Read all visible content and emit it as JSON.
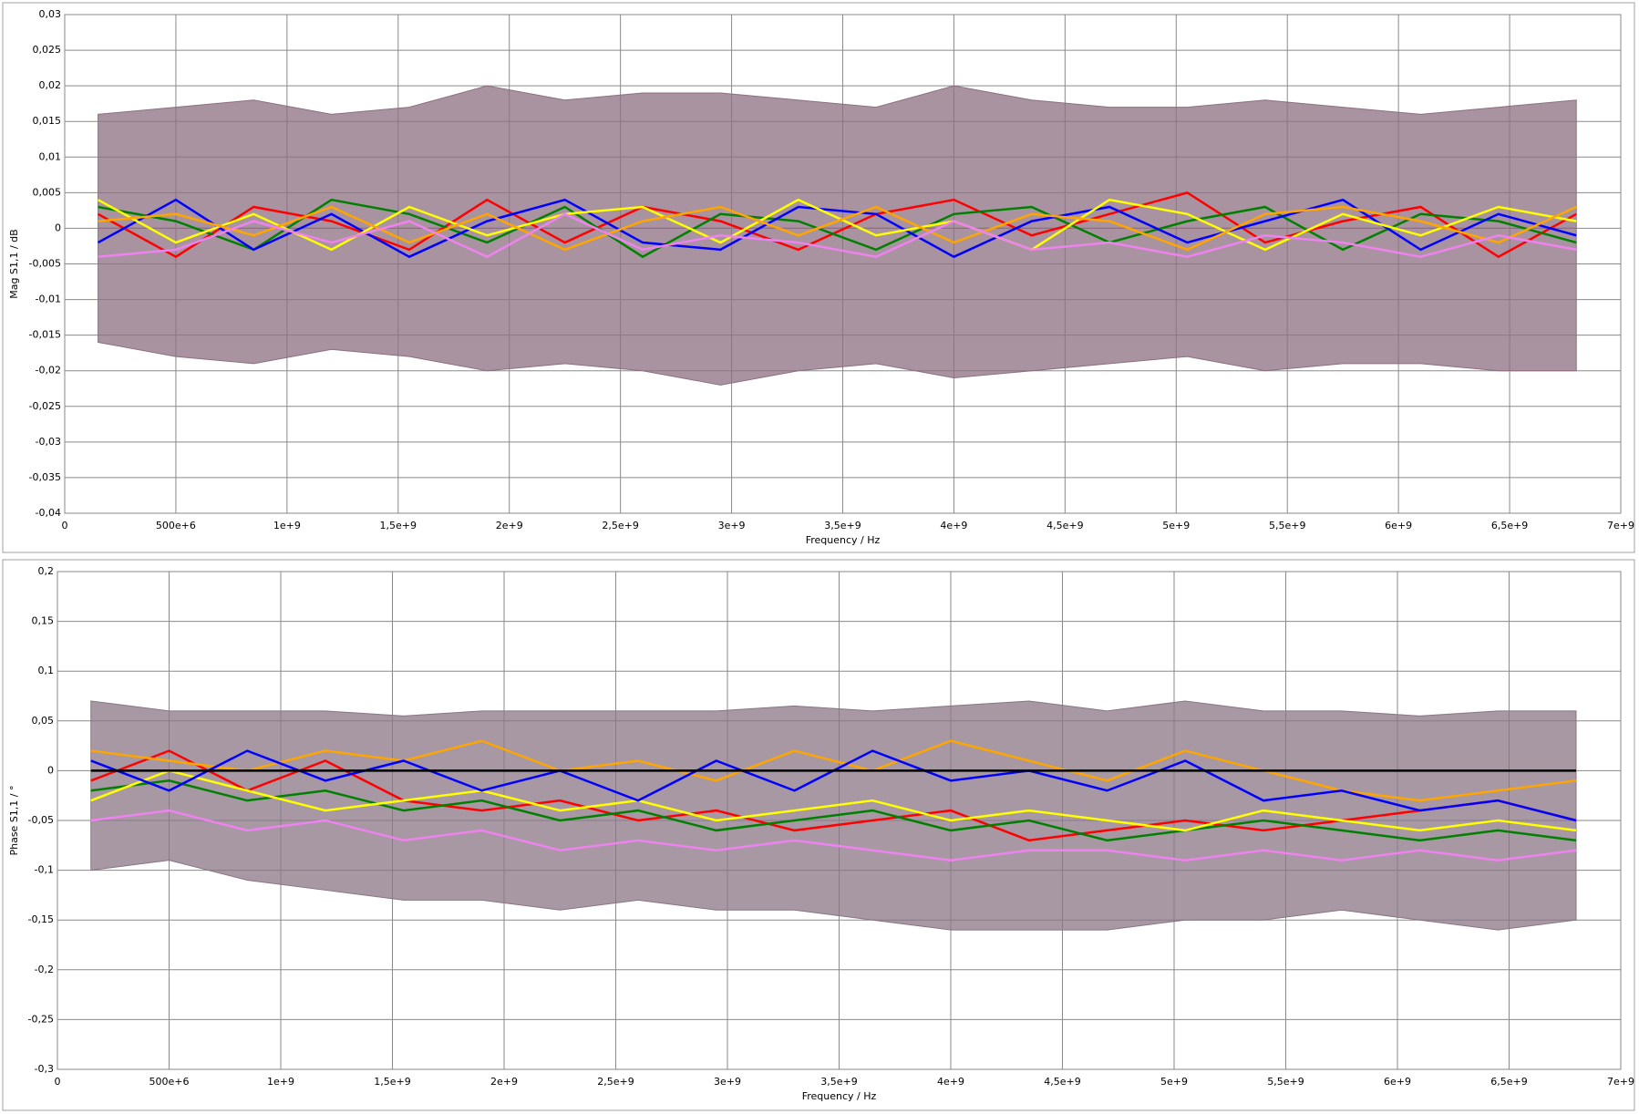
{
  "chart_data": [
    {
      "type": "line",
      "xlabel": "Frequency / Hz",
      "ylabel": "Mag S1,1 / dB",
      "grid": true,
      "xlim": [
        0,
        7000000000
      ],
      "ylim": [
        -0.04,
        0.03
      ],
      "xticks": [
        0,
        {
          "value": 500000000,
          "label": "500e+6"
        },
        {
          "value": 1000000000,
          "label": "1e+9"
        },
        {
          "value": 1500000000,
          "label": "1,5e+9"
        },
        {
          "value": 2000000000,
          "label": "2e+9"
        },
        {
          "value": 2500000000,
          "label": "2,5e+9"
        },
        {
          "value": 3000000000,
          "label": "3e+9"
        },
        {
          "value": 3500000000,
          "label": "3,5e+9"
        },
        {
          "value": 4000000000,
          "label": "4e+9"
        },
        {
          "value": 4500000000,
          "label": "4,5e+9"
        },
        {
          "value": 5000000000,
          "label": "5e+9"
        },
        {
          "value": 5500000000,
          "label": "5,5e+9"
        },
        {
          "value": 6000000000,
          "label": "6e+9"
        },
        {
          "value": 6500000000,
          "label": "6,5e+9"
        },
        {
          "value": 7000000000,
          "label": "7e+9"
        }
      ],
      "yticks": [
        {
          "value": -0.04,
          "label": "-0,04"
        },
        {
          "value": -0.035,
          "label": "-0,035"
        },
        {
          "value": -0.03,
          "label": "-0,03"
        },
        {
          "value": -0.025,
          "label": "-0,025"
        },
        {
          "value": -0.02,
          "label": "-0,02"
        },
        {
          "value": -0.015,
          "label": "-0,015"
        },
        {
          "value": -0.01,
          "label": "-0,01"
        },
        {
          "value": -0.005,
          "label": "-0,005"
        },
        0,
        {
          "value": 0.005,
          "label": "0,005"
        },
        {
          "value": 0.01,
          "label": "0,01"
        },
        {
          "value": 0.015,
          "label": "0,015"
        },
        {
          "value": 0.02,
          "label": "0,02"
        },
        {
          "value": 0.025,
          "label": "0,025"
        },
        {
          "value": 0.03,
          "label": "0,03"
        }
      ],
      "x": [
        150000000,
        500000000,
        850000000,
        1200000000,
        1550000000,
        1900000000,
        2250000000,
        2600000000,
        2950000000,
        3300000000,
        3650000000,
        4000000000,
        4350000000,
        4700000000,
        5050000000,
        5400000000,
        5750000000,
        6100000000,
        6450000000,
        6800000000
      ],
      "band": {
        "color": "#8c6f80",
        "upper": [
          0.016,
          0.017,
          0.018,
          0.016,
          0.017,
          0.02,
          0.018,
          0.019,
          0.019,
          0.018,
          0.017,
          0.02,
          0.018,
          0.017,
          0.017,
          0.018,
          0.017,
          0.016,
          0.017,
          0.018
        ],
        "lower": [
          -0.016,
          -0.018,
          -0.019,
          -0.017,
          -0.018,
          -0.02,
          -0.019,
          -0.02,
          -0.022,
          -0.02,
          -0.019,
          -0.021,
          -0.02,
          -0.019,
          -0.018,
          -0.02,
          -0.019,
          -0.019,
          -0.02,
          -0.02
        ]
      },
      "series": [
        {
          "color": "#ff0000",
          "values": [
            0.002,
            -0.004,
            0.003,
            0.001,
            -0.003,
            0.004,
            -0.002,
            0.003,
            0.001,
            -0.003,
            0.002,
            0.004,
            -0.001,
            0.002,
            0.005,
            -0.002,
            0.001,
            0.003,
            -0.004,
            0.002
          ]
        },
        {
          "color": "#008000",
          "values": [
            0.003,
            0.001,
            -0.003,
            0.004,
            0.002,
            -0.002,
            0.003,
            -0.004,
            0.002,
            0.001,
            -0.003,
            0.002,
            0.003,
            -0.002,
            0.001,
            0.003,
            -0.003,
            0.002,
            0.001,
            -0.002
          ]
        },
        {
          "color": "#0000ff",
          "values": [
            -0.002,
            0.004,
            -0.003,
            0.002,
            -0.004,
            0.001,
            0.004,
            -0.002,
            -0.003,
            0.003,
            0.002,
            -0.004,
            0.001,
            0.003,
            -0.002,
            0.001,
            0.004,
            -0.003,
            0.002,
            -0.001
          ]
        },
        {
          "color": "#ffff00",
          "values": [
            0.004,
            -0.002,
            0.002,
            -0.003,
            0.003,
            -0.001,
            0.002,
            0.003,
            -0.002,
            0.004,
            -0.001,
            0.001,
            -0.003,
            0.004,
            0.002,
            -0.003,
            0.002,
            -0.001,
            0.003,
            0.001
          ]
        },
        {
          "color": "#ffa500",
          "values": [
            0.001,
            0.002,
            -0.001,
            0.003,
            -0.002,
            0.002,
            -0.003,
            0.001,
            0.003,
            -0.001,
            0.003,
            -0.002,
            0.002,
            0.001,
            -0.003,
            0.002,
            0.003,
            0.001,
            -0.002,
            0.003
          ]
        },
        {
          "color": "#ee82ee",
          "values": [
            -0.004,
            -0.003,
            0.001,
            -0.002,
            0.001,
            -0.004,
            0.002,
            -0.003,
            -0.001,
            -0.002,
            -0.004,
            0.001,
            -0.003,
            -0.002,
            -0.004,
            -0.001,
            -0.002,
            -0.004,
            -0.001,
            -0.003
          ]
        }
      ]
    },
    {
      "type": "line",
      "xlabel": "Frequency / Hz",
      "ylabel": "Phase S1,1 / °",
      "grid": true,
      "xlim": [
        0,
        7000000000
      ],
      "ylim": [
        -0.3,
        0.2
      ],
      "xticks": [
        0,
        {
          "value": 500000000,
          "label": "500e+6"
        },
        {
          "value": 1000000000,
          "label": "1e+9"
        },
        {
          "value": 1500000000,
          "label": "1,5e+9"
        },
        {
          "value": 2000000000,
          "label": "2e+9"
        },
        {
          "value": 2500000000,
          "label": "2,5e+9"
        },
        {
          "value": 3000000000,
          "label": "3e+9"
        },
        {
          "value": 3500000000,
          "label": "3,5e+9"
        },
        {
          "value": 4000000000,
          "label": "4e+9"
        },
        {
          "value": 4500000000,
          "label": "4,5e+9"
        },
        {
          "value": 5000000000,
          "label": "5e+9"
        },
        {
          "value": 5500000000,
          "label": "5,5e+9"
        },
        {
          "value": 6000000000,
          "label": "6e+9"
        },
        {
          "value": 6500000000,
          "label": "6,5e+9"
        },
        {
          "value": 7000000000,
          "label": "7e+9"
        }
      ],
      "yticks": [
        {
          "value": -0.3,
          "label": "-0,3"
        },
        {
          "value": -0.25,
          "label": "-0,25"
        },
        {
          "value": -0.2,
          "label": "-0,2"
        },
        {
          "value": -0.15,
          "label": "-0,15"
        },
        {
          "value": -0.1,
          "label": "-0,1"
        },
        {
          "value": -0.05,
          "label": "-0,05"
        },
        0,
        {
          "value": 0.05,
          "label": "0,05"
        },
        {
          "value": 0.1,
          "label": "0,1"
        },
        {
          "value": 0.15,
          "label": "0,15"
        },
        {
          "value": 0.2,
          "label": "0,2"
        }
      ],
      "x": [
        150000000,
        500000000,
        850000000,
        1200000000,
        1550000000,
        1900000000,
        2250000000,
        2600000000,
        2950000000,
        3300000000,
        3650000000,
        4000000000,
        4350000000,
        4700000000,
        5050000000,
        5400000000,
        5750000000,
        6100000000,
        6450000000,
        6800000000
      ],
      "band": {
        "color": "#8a7585",
        "upper": [
          0.07,
          0.06,
          0.06,
          0.06,
          0.055,
          0.06,
          0.06,
          0.06,
          0.06,
          0.065,
          0.06,
          0.065,
          0.07,
          0.06,
          0.07,
          0.06,
          0.06,
          0.055,
          0.06,
          0.06
        ],
        "lower": [
          -0.1,
          -0.09,
          -0.11,
          -0.12,
          -0.13,
          -0.13,
          -0.14,
          -0.13,
          -0.14,
          -0.14,
          -0.15,
          -0.16,
          -0.16,
          -0.16,
          -0.15,
          -0.15,
          -0.14,
          -0.15,
          -0.16,
          -0.15
        ]
      },
      "series": [
        {
          "color": "#ff0000",
          "values": [
            -0.01,
            0.02,
            -0.02,
            0.01,
            -0.03,
            -0.04,
            -0.03,
            -0.05,
            -0.04,
            -0.06,
            -0.05,
            -0.04,
            -0.07,
            -0.06,
            -0.05,
            -0.06,
            -0.05,
            -0.04,
            -0.03,
            -0.05
          ]
        },
        {
          "color": "#008000",
          "values": [
            -0.02,
            -0.01,
            -0.03,
            -0.02,
            -0.04,
            -0.03,
            -0.05,
            -0.04,
            -0.06,
            -0.05,
            -0.04,
            -0.06,
            -0.05,
            -0.07,
            -0.06,
            -0.05,
            -0.06,
            -0.07,
            -0.06,
            -0.07
          ]
        },
        {
          "color": "#ffff00",
          "values": [
            -0.03,
            0,
            -0.02,
            -0.04,
            -0.03,
            -0.02,
            -0.04,
            -0.03,
            -0.05,
            -0.04,
            -0.03,
            -0.05,
            -0.04,
            -0.05,
            -0.06,
            -0.04,
            -0.05,
            -0.06,
            -0.05,
            -0.06
          ]
        },
        {
          "color": "#ee82ee",
          "values": [
            -0.05,
            -0.04,
            -0.06,
            -0.05,
            -0.07,
            -0.06,
            -0.08,
            -0.07,
            -0.08,
            -0.07,
            -0.08,
            -0.09,
            -0.08,
            -0.08,
            -0.09,
            -0.08,
            -0.09,
            -0.08,
            -0.09,
            -0.08
          ]
        },
        {
          "color": "#ffa500",
          "values": [
            0.02,
            0.01,
            0,
            0.02,
            0.01,
            0.03,
            0,
            0.01,
            -0.01,
            0.02,
            0,
            0.03,
            0.01,
            -0.01,
            0.02,
            0,
            -0.02,
            -0.03,
            -0.02,
            -0.01
          ]
        },
        {
          "color": "#0000ff",
          "values": [
            0.01,
            -0.02,
            0.02,
            -0.01,
            0.01,
            -0.02,
            0,
            -0.03,
            0.01,
            -0.02,
            0.02,
            -0.01,
            0,
            -0.02,
            0.01,
            -0.03,
            -0.02,
            -0.04,
            -0.03,
            -0.05
          ]
        },
        {
          "color": "#000000",
          "values": [
            0,
            0,
            0,
            0,
            0,
            0,
            0,
            0,
            0,
            0,
            0,
            0,
            0,
            0,
            0,
            0,
            0,
            0,
            0,
            0
          ]
        }
      ]
    }
  ]
}
